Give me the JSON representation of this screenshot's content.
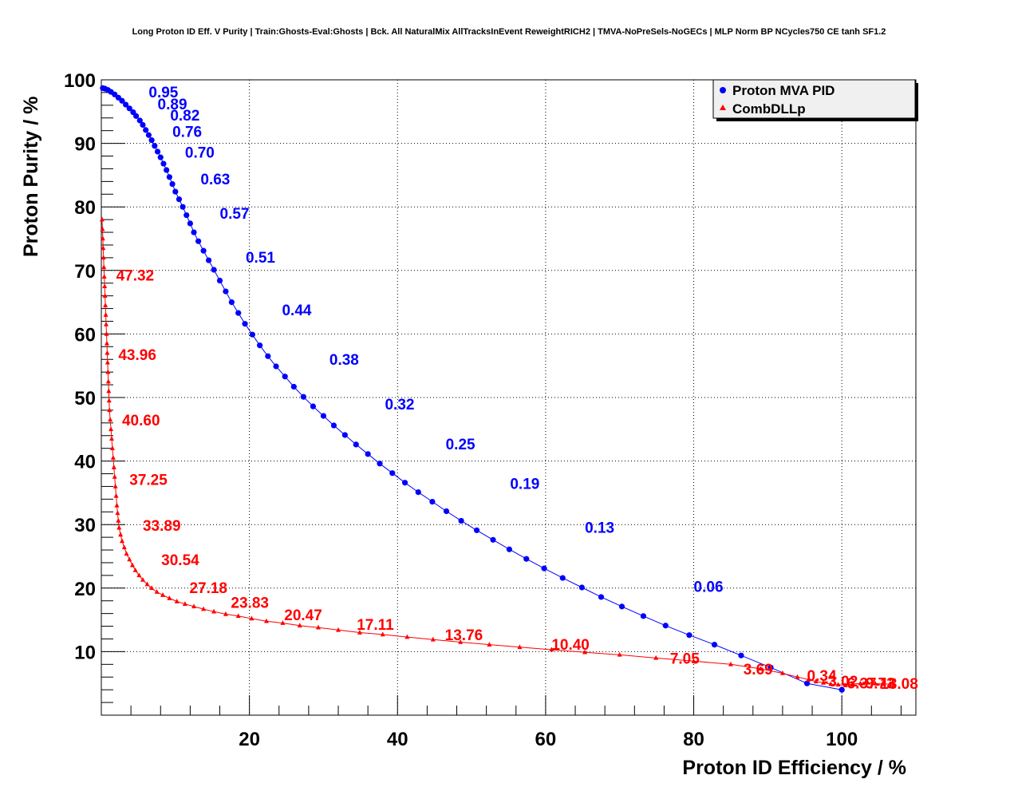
{
  "chart_data": {
    "type": "scatter",
    "title": "Long Proton ID Eff. V Purity | Train:Ghosts-Eval:Ghosts | Bck. All NaturalMix AllTracksInEvent ReweightRICH2 | TMVA-NoPreSels-NoGECs | MLP Norm BP NCycles750 CE tanh SF1.2",
    "xlabel": "Proton ID Efficiency / %",
    "ylabel": "Proton Purity / %",
    "xlim": [
      0,
      110
    ],
    "ylim": [
      0,
      100
    ],
    "xticks": [
      20,
      40,
      60,
      80,
      100
    ],
    "yticks": [
      10,
      20,
      30,
      40,
      50,
      60,
      70,
      80,
      90,
      100
    ],
    "grid": true,
    "legend_position": "top-right",
    "series": [
      {
        "name": "Proton MVA PID",
        "color": "#0000ff",
        "marker": "circle",
        "x": [
          0.2,
          0.5,
          0.9,
          1.3,
          1.8,
          2.3,
          2.8,
          3.3,
          3.8,
          4.3,
          4.7,
          5.2,
          5.6,
          6.0,
          6.4,
          6.8,
          7.2,
          7.6,
          8.0,
          8.4,
          8.8,
          9.2,
          9.6,
          10.0,
          10.5,
          11.0,
          11.5,
          12.0,
          12.5,
          13.1,
          13.8,
          14.5,
          15.2,
          16.0,
          16.8,
          17.6,
          18.5,
          19.4,
          20.4,
          21.4,
          22.5,
          23.6,
          24.8,
          26.0,
          27.3,
          28.6,
          30.0,
          31.4,
          32.9,
          34.4,
          36.0,
          37.6,
          39.3,
          41.0,
          42.8,
          44.7,
          46.6,
          48.6,
          50.7,
          52.9,
          55.1,
          57.4,
          59.8,
          62.3,
          64.9,
          67.5,
          70.3,
          73.2,
          76.2,
          79.4,
          82.8,
          86.4,
          90.4,
          95.3,
          100.0
        ],
        "y": [
          98.7,
          98.6,
          98.4,
          98.1,
          97.7,
          97.2,
          96.7,
          96.1,
          95.5,
          94.9,
          94.3,
          93.6,
          92.9,
          92.1,
          91.3,
          90.5,
          89.6,
          88.7,
          87.8,
          86.8,
          85.8,
          84.7,
          83.6,
          82.4,
          81.2,
          80.0,
          78.7,
          77.4,
          76.0,
          74.6,
          73.1,
          71.6,
          70.1,
          68.4,
          66.7,
          65.0,
          63.3,
          61.6,
          59.9,
          58.2,
          56.5,
          54.9,
          53.3,
          51.7,
          50.1,
          48.6,
          47.1,
          45.6,
          44.1,
          42.6,
          41.1,
          39.6,
          38.1,
          36.6,
          35.1,
          33.6,
          32.1,
          30.6,
          29.1,
          27.6,
          26.1,
          24.6,
          23.1,
          21.6,
          20.1,
          18.6,
          17.1,
          15.6,
          14.1,
          12.6,
          11.1,
          9.4,
          7.5,
          5.0,
          4.0
        ],
        "cut_labels": [
          {
            "text": "0.95",
            "x": 6.4,
            "y": 98.1
          },
          {
            "text": "0.89",
            "x": 7.6,
            "y": 96.2
          },
          {
            "text": "0.82",
            "x": 9.3,
            "y": 94.5
          },
          {
            "text": "0.76",
            "x": 9.6,
            "y": 91.9
          },
          {
            "text": "0.70",
            "x": 11.3,
            "y": 88.6
          },
          {
            "text": "0.63",
            "x": 13.4,
            "y": 84.4
          },
          {
            "text": "0.57",
            "x": 16.0,
            "y": 79.0
          },
          {
            "text": "0.51",
            "x": 19.5,
            "y": 72.1
          },
          {
            "text": "0.44",
            "x": 24.4,
            "y": 63.8
          },
          {
            "text": "0.38",
            "x": 30.8,
            "y": 56.0
          },
          {
            "text": "0.32",
            "x": 38.3,
            "y": 49.0
          },
          {
            "text": "0.25",
            "x": 46.5,
            "y": 42.7
          },
          {
            "text": "0.19",
            "x": 55.2,
            "y": 36.5
          },
          {
            "text": "0.13",
            "x": 65.3,
            "y": 29.6
          },
          {
            "text": "0.06",
            "x": 80.0,
            "y": 20.3
          }
        ]
      },
      {
        "name": "CombDLLp",
        "color": "#ff0000",
        "marker": "triangle",
        "x": [
          0.1,
          0.15,
          0.2,
          0.25,
          0.3,
          0.35,
          0.4,
          0.45,
          0.5,
          0.55,
          0.6,
          0.65,
          0.7,
          0.75,
          0.8,
          0.85,
          0.9,
          0.95,
          1.0,
          1.05,
          1.1,
          1.2,
          1.3,
          1.4,
          1.5,
          1.6,
          1.7,
          1.8,
          1.9,
          2.0,
          2.1,
          2.2,
          2.3,
          2.4,
          2.6,
          2.8,
          3.1,
          3.4,
          3.8,
          4.2,
          4.6,
          5.1,
          5.6,
          6.2,
          6.8,
          7.5,
          8.3,
          9.2,
          10.2,
          11.3,
          12.5,
          13.8,
          15.2,
          16.8,
          18.5,
          20.3,
          22.3,
          24.5,
          26.8,
          29.3,
          32.0,
          34.9,
          38.0,
          41.3,
          44.8,
          48.5,
          52.4,
          56.5,
          60.8,
          65.3,
          70.0,
          74.9,
          80.0,
          85.0,
          89.0,
          92.0,
          94.0,
          95.5,
          96.5,
          97.5,
          98.5,
          99.5,
          100.5,
          101.5,
          102.5,
          103.5,
          104.5,
          105.5,
          106.5
        ],
        "y": [
          78.0,
          76.5,
          75.0,
          73.5,
          72.0,
          70.5,
          69.0,
          67.5,
          66.0,
          64.5,
          63.0,
          61.5,
          60.0,
          58.5,
          57.0,
          55.5,
          54.0,
          52.5,
          51.0,
          49.5,
          48.0,
          46.5,
          45.0,
          43.5,
          42.0,
          40.5,
          39.0,
          37.5,
          36.0,
          34.5,
          33.0,
          31.8,
          30.6,
          29.5,
          28.4,
          27.4,
          26.4,
          25.4,
          24.5,
          23.6,
          22.8,
          22.0,
          21.3,
          20.6,
          20.0,
          19.4,
          18.9,
          18.4,
          17.9,
          17.5,
          17.1,
          16.7,
          16.3,
          15.9,
          15.6,
          15.2,
          14.8,
          14.5,
          14.1,
          13.8,
          13.4,
          13.0,
          12.7,
          12.3,
          11.9,
          11.5,
          11.1,
          10.7,
          10.3,
          9.9,
          9.5,
          9.0,
          8.5,
          8.0,
          7.3,
          6.6,
          6.0,
          5.6,
          5.3,
          5.1,
          4.9,
          4.8,
          4.7,
          4.9,
          5.0,
          5.1,
          5.0,
          4.9,
          4.9
        ],
        "cut_labels": [
          {
            "text": "47.32",
            "x": 2.0,
            "y": 69.3
          },
          {
            "text": "43.96",
            "x": 2.3,
            "y": 56.8
          },
          {
            "text": "40.60",
            "x": 2.8,
            "y": 46.5
          },
          {
            "text": "37.25",
            "x": 3.8,
            "y": 37.1
          },
          {
            "text": "33.89",
            "x": 5.6,
            "y": 29.9
          },
          {
            "text": "30.54",
            "x": 8.1,
            "y": 24.5
          },
          {
            "text": "27.18",
            "x": 11.9,
            "y": 20.1
          },
          {
            "text": "23.83",
            "x": 17.5,
            "y": 17.8
          },
          {
            "text": "20.47",
            "x": 24.7,
            "y": 15.8
          },
          {
            "text": "17.11",
            "x": 34.5,
            "y": 14.3
          },
          {
            "text": "13.76",
            "x": 46.4,
            "y": 12.7
          },
          {
            "text": "10.40",
            "x": 60.8,
            "y": 11.2
          },
          {
            "text": "7.05",
            "x": 76.8,
            "y": 9.0
          },
          {
            "text": "3.69",
            "x": 86.7,
            "y": 7.3
          },
          {
            "text": "0.34",
            "x": 95.3,
            "y": 6.3
          },
          {
            "text": "-3.02",
            "x": 97.5,
            "y": 5.4
          },
          {
            "text": "-6.37",
            "x": 100.0,
            "y": 5.1
          },
          {
            "text": "-9.73",
            "x": 102.5,
            "y": 5.1
          },
          {
            "text": "-13.08",
            "x": 104.5,
            "y": 5.0
          }
        ]
      }
    ]
  }
}
